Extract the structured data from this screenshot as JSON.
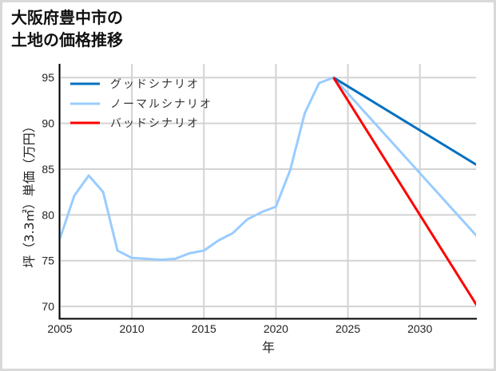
{
  "title": {
    "line1": "大阪府豊中市の",
    "line2": "土地の価格推移"
  },
  "chart_data": {
    "type": "line",
    "title": "大阪府豊中市の土地の価格推移",
    "xlabel": "年",
    "ylabel": "坪（3.3㎡）単価（万円）",
    "xlim": [
      2005,
      2033.9
    ],
    "ylim": [
      68.7,
      96.5
    ],
    "xticks": [
      2005,
      2010,
      2015,
      2020,
      2025,
      2030
    ],
    "yticks": [
      70,
      75,
      80,
      85,
      90,
      95
    ],
    "grid": true,
    "legend_position": "upper left",
    "series": [
      {
        "name": "グッドシナリオ",
        "color": "#0070c0",
        "x": [
          2024,
          2034
        ],
        "values": [
          95.0,
          85.4
        ]
      },
      {
        "name": "ノーマルシナリオ",
        "color": "#99ccff",
        "x": [
          2005,
          2006,
          2007,
          2008,
          2009,
          2010,
          2011,
          2012,
          2013,
          2014,
          2015,
          2016,
          2017,
          2018,
          2019,
          2020,
          2021,
          2022,
          2023,
          2024,
          2034
        ],
        "values": [
          77.4,
          82.1,
          84.3,
          82.5,
          76.1,
          75.3,
          75.2,
          75.1,
          75.2,
          75.8,
          76.1,
          77.2,
          78.0,
          79.5,
          80.3,
          80.9,
          84.9,
          91.1,
          94.4,
          95.0,
          77.6
        ]
      },
      {
        "name": "バッドシナリオ",
        "color": "#ff0000",
        "x": [
          2024,
          2034
        ],
        "values": [
          95.0,
          70.0
        ]
      }
    ]
  }
}
